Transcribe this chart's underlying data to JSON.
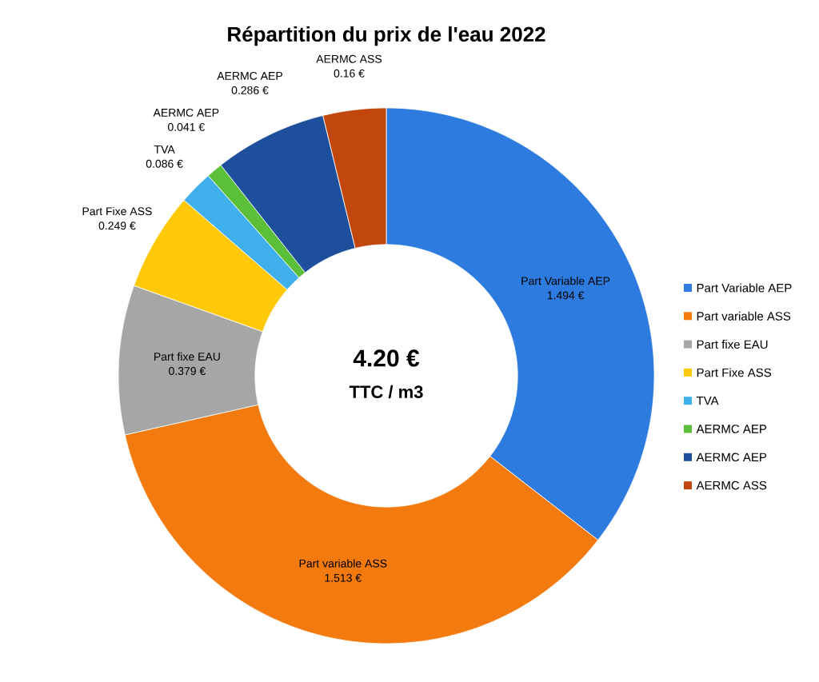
{
  "chart_data": {
    "type": "donut",
    "title": "Répartition du prix de l'eau 2022",
    "categories": [
      "Part Variable AEP",
      "Part variable ASS",
      "Part fixe EAU",
      "Part Fixe ASS",
      "TVA",
      "AERMC AEP",
      "AERMC AEP",
      "AERMC ASS"
    ],
    "values": [
      1.494,
      1.513,
      0.379,
      0.249,
      0.086,
      0.041,
      0.286,
      0.16
    ],
    "colors": [
      "#2e7be0",
      "#f27a0e",
      "#a6a6a6",
      "#ffc90a",
      "#3fb0ec",
      "#5cbf3a",
      "#1d4f9c",
      "#c2470f"
    ],
    "value_labels": [
      "1.494 €",
      "1.513 €",
      "0.379 €",
      "0.249 €",
      "0.086 €",
      "0.041 €",
      "0.286 €",
      "0.16 €"
    ],
    "legend": "right",
    "annotations": [
      "4.20 €",
      "TTC / m3"
    ]
  }
}
